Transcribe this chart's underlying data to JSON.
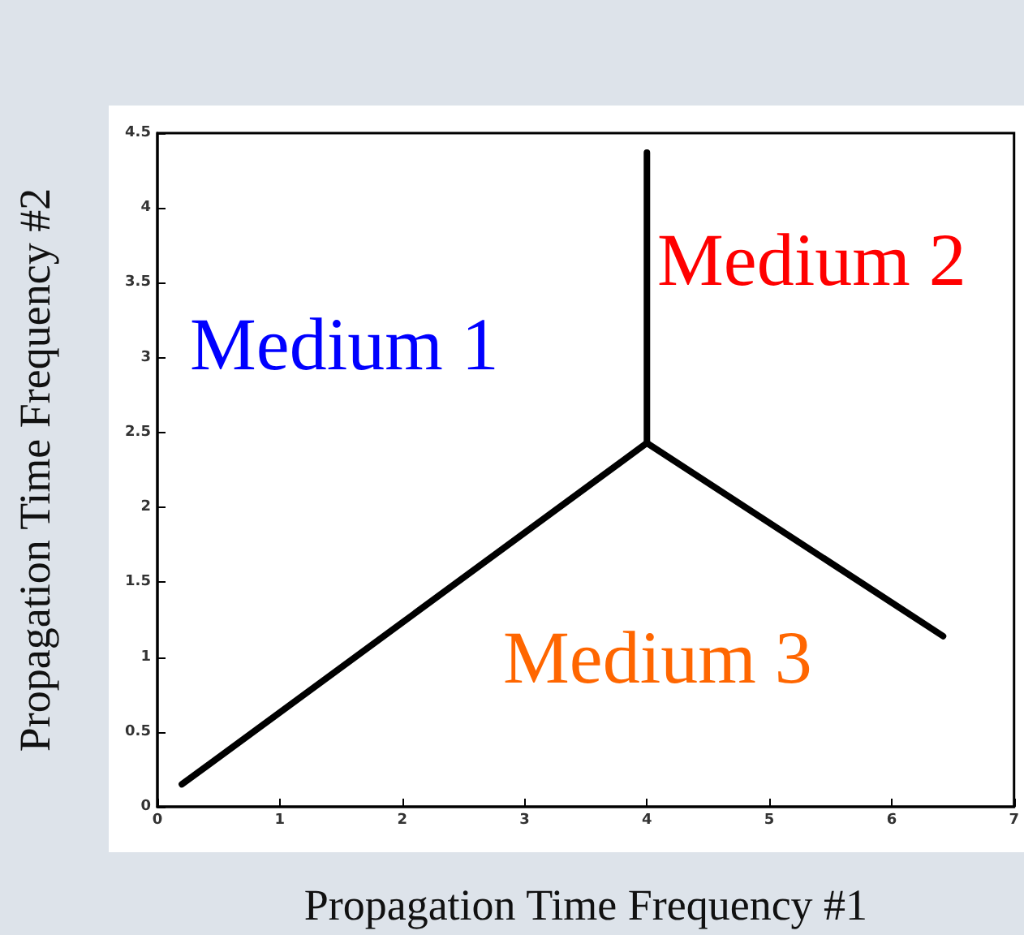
{
  "chart_data": {
    "type": "line",
    "xlabel": "Propagation Time Frequency #1",
    "ylabel": "Propagation Time Frequency #2",
    "annotations": [
      "Medium 1",
      "Medium 2",
      "Medium 3"
    ],
    "series": [
      {
        "color": "#000000",
        "x": [
          0.2,
          4.0
        ],
        "values": [
          0.15,
          2.43
        ]
      },
      {
        "color": "#000000",
        "x": [
          4.0,
          4.0
        ],
        "values": [
          2.43,
          4.37
        ]
      },
      {
        "color": "#000000",
        "x": [
          4.0,
          6.42
        ],
        "values": [
          2.43,
          1.14
        ]
      }
    ],
    "xlim": [
      0,
      7
    ],
    "xticks": [
      0,
      1,
      2,
      3,
      4,
      5,
      6,
      7
    ],
    "ylim": [
      0,
      4.5
    ],
    "yticks": [
      0,
      0.5,
      1,
      1.5,
      2,
      2.5,
      3,
      3.5,
      4,
      4.5
    ],
    "grid": false,
    "marker": "none",
    "line_style": "solid"
  }
}
